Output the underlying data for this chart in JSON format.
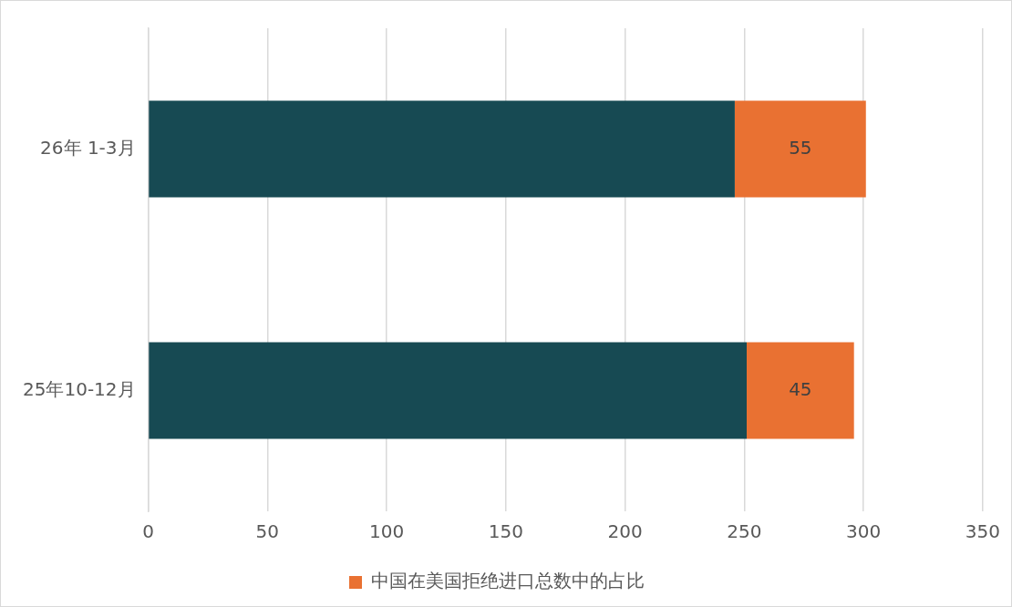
{
  "chart_data": {
    "type": "bar",
    "orientation": "horizontal",
    "stacked": true,
    "categories": [
      "26年 1-3月",
      "25年10-12月"
    ],
    "series": [
      {
        "color": "#174a53",
        "values": [
          246,
          251
        ]
      },
      {
        "name": "中国在美国拒绝进口总数中的占比",
        "color": "#e97132",
        "values": [
          55,
          45
        ],
        "value_labels": [
          "55",
          "45"
        ]
      }
    ],
    "xlim": [
      0,
      350
    ],
    "xticks": [
      0,
      50,
      100,
      150,
      200,
      250,
      300,
      350
    ],
    "grid": "x",
    "legend": "bottom"
  }
}
